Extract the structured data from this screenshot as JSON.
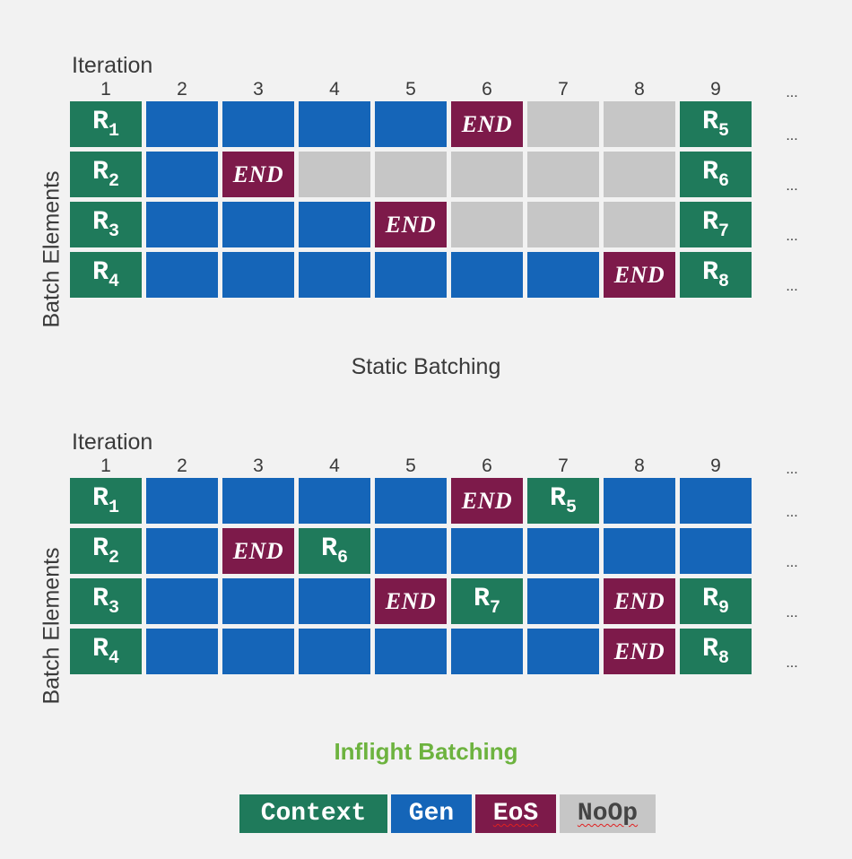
{
  "colors": {
    "context": "#1f7a5b",
    "gen": "#1565b8",
    "eos": "#7d1a4a",
    "noop": "#c6c6c6"
  },
  "diagrams": [
    {
      "id": "static",
      "iteration_label": "Iteration",
      "batch_label": "Batch Elements",
      "iterations": [
        "1",
        "2",
        "3",
        "4",
        "5",
        "6",
        "7",
        "8",
        "9"
      ],
      "ellipsis": "...",
      "caption": "Static Batching",
      "rows": [
        [
          [
            "context",
            "R",
            "1"
          ],
          [
            "gen"
          ],
          [
            "gen"
          ],
          [
            "gen"
          ],
          [
            "gen"
          ],
          [
            "eos",
            "END"
          ],
          [
            "noop"
          ],
          [
            "noop"
          ],
          [
            "context",
            "R",
            "5"
          ]
        ],
        [
          [
            "context",
            "R",
            "2"
          ],
          [
            "gen"
          ],
          [
            "eos",
            "END"
          ],
          [
            "noop"
          ],
          [
            "noop"
          ],
          [
            "noop"
          ],
          [
            "noop"
          ],
          [
            "noop"
          ],
          [
            "context",
            "R",
            "6"
          ]
        ],
        [
          [
            "context",
            "R",
            "3"
          ],
          [
            "gen"
          ],
          [
            "gen"
          ],
          [
            "gen"
          ],
          [
            "eos",
            "END"
          ],
          [
            "noop"
          ],
          [
            "noop"
          ],
          [
            "noop"
          ],
          [
            "context",
            "R",
            "7"
          ]
        ],
        [
          [
            "context",
            "R",
            "4"
          ],
          [
            "gen"
          ],
          [
            "gen"
          ],
          [
            "gen"
          ],
          [
            "gen"
          ],
          [
            "gen"
          ],
          [
            "gen"
          ],
          [
            "eos",
            "END"
          ],
          [
            "context",
            "R",
            "8"
          ]
        ]
      ]
    },
    {
      "id": "inflight",
      "iteration_label": "Iteration",
      "batch_label": "Batch Elements",
      "iterations": [
        "1",
        "2",
        "3",
        "4",
        "5",
        "6",
        "7",
        "8",
        "9"
      ],
      "ellipsis": "...",
      "caption": "Inflight Batching",
      "rows": [
        [
          [
            "context",
            "R",
            "1"
          ],
          [
            "gen"
          ],
          [
            "gen"
          ],
          [
            "gen"
          ],
          [
            "gen"
          ],
          [
            "eos",
            "END"
          ],
          [
            "context",
            "R",
            "5"
          ],
          [
            "gen"
          ],
          [
            "gen"
          ]
        ],
        [
          [
            "context",
            "R",
            "2"
          ],
          [
            "gen"
          ],
          [
            "eos",
            "END"
          ],
          [
            "context",
            "R",
            "6"
          ],
          [
            "gen"
          ],
          [
            "gen"
          ],
          [
            "gen"
          ],
          [
            "gen"
          ],
          [
            "gen"
          ]
        ],
        [
          [
            "context",
            "R",
            "3"
          ],
          [
            "gen"
          ],
          [
            "gen"
          ],
          [
            "gen"
          ],
          [
            "eos",
            "END"
          ],
          [
            "context",
            "R",
            "7"
          ],
          [
            "gen"
          ],
          [
            "eos",
            "END"
          ],
          [
            "context",
            "R",
            "9"
          ]
        ],
        [
          [
            "context",
            "R",
            "4"
          ],
          [
            "gen"
          ],
          [
            "gen"
          ],
          [
            "gen"
          ],
          [
            "gen"
          ],
          [
            "gen"
          ],
          [
            "gen"
          ],
          [
            "eos",
            "END"
          ],
          [
            "context",
            "R",
            "8"
          ]
        ]
      ]
    }
  ],
  "legend": {
    "context": "Context",
    "gen": "Gen",
    "eos": "EoS",
    "noop": "NoOp"
  }
}
